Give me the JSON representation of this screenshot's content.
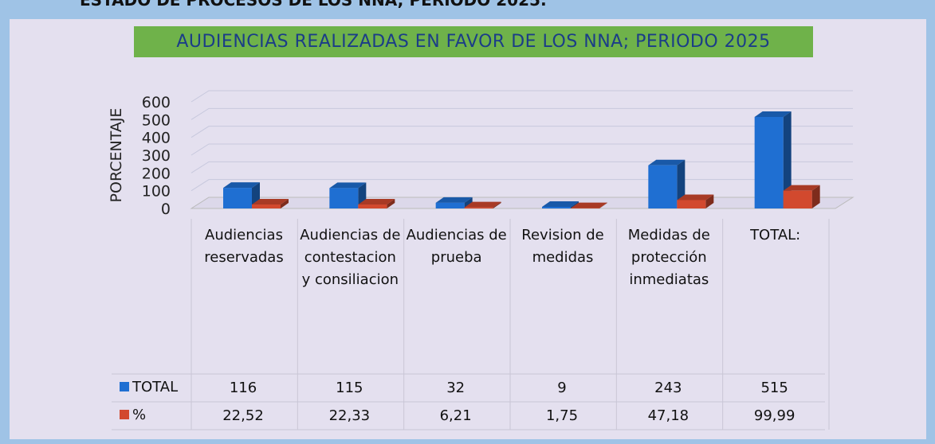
{
  "header": "ESTADO DE PROCESOS DE LOS NNA; PERIODO 2025:",
  "chart_data": {
    "type": "bar3d",
    "title": "AUDIENCIAS REALIZADAS EN FAVOR DE LOS NNA; PERIODO 2025",
    "y_label": "PORCENTAJE",
    "categories": [
      "Audiencias reservadas",
      "Audiencias de contestacion y consiliacion",
      "Audiencias de prueba",
      "Revision de medidas",
      "Medidas de protección inmediatas",
      "TOTAL:"
    ],
    "series": [
      {
        "name": "TOTAL",
        "color": "#1f6fd2",
        "values": [
          116,
          115,
          32,
          9,
          243,
          515
        ]
      },
      {
        "name": "%",
        "color": "#d2492e",
        "values": [
          22.52,
          22.33,
          6.21,
          1.75,
          47.18,
          99.99
        ],
        "value_labels": [
          "22,52",
          "22,33",
          "6,21",
          "1,75",
          "47,18",
          "99,99"
        ]
      }
    ],
    "ylim": [
      0,
      600
    ],
    "yticks": [
      0,
      100,
      200,
      300,
      400,
      500,
      600
    ],
    "grid": true
  }
}
